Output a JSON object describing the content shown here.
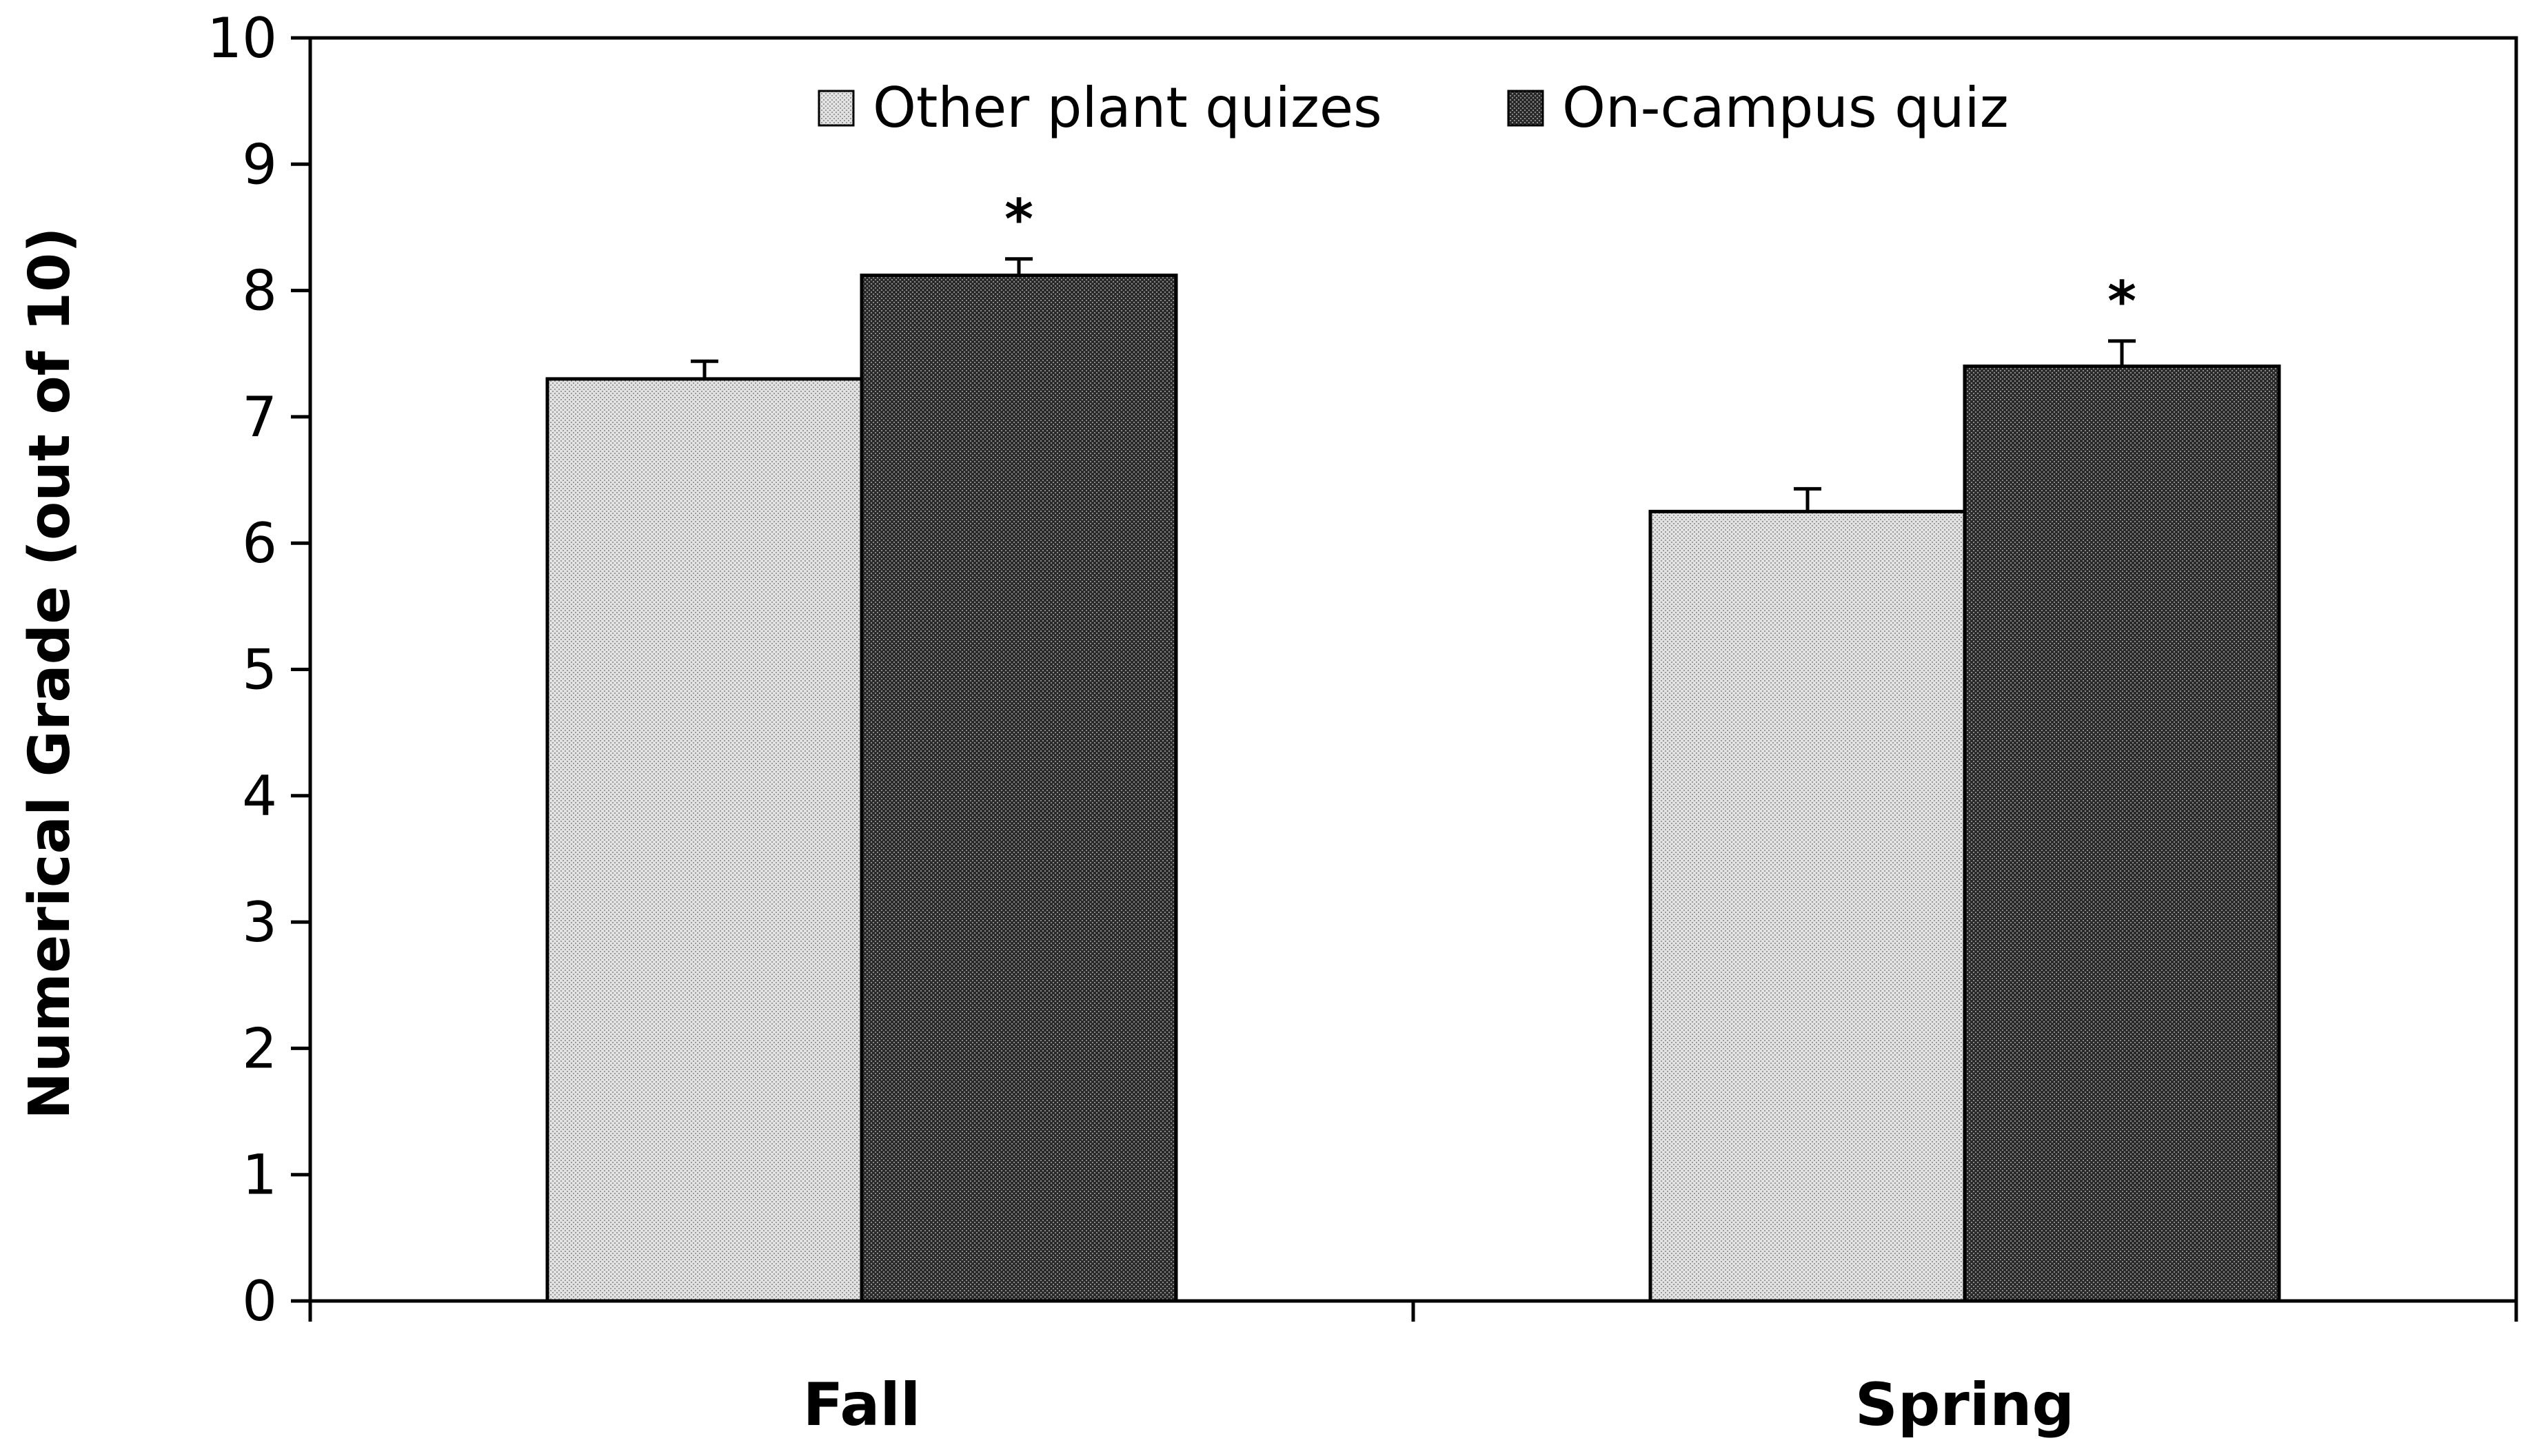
{
  "chart_data": {
    "type": "bar",
    "categories": [
      "Fall",
      "Spring"
    ],
    "series": [
      {
        "name": "Other plant quizes",
        "values": [
          7.3,
          6.25
        ],
        "errors": [
          0.14,
          0.18
        ],
        "color": "#d2d2d2"
      },
      {
        "name": "On-campus quiz",
        "values": [
          8.12,
          7.4
        ],
        "errors": [
          0.13,
          0.2
        ],
        "color": "#3a3a3a"
      }
    ],
    "annotations": [
      {
        "text": "*",
        "category": "Fall",
        "series": "On-campus quiz"
      },
      {
        "text": "*",
        "category": "Spring",
        "series": "On-campus quiz"
      }
    ],
    "title": "",
    "xlabel": "",
    "ylabel": "Numerical Grade (out of 10)",
    "ylim": [
      0,
      10
    ],
    "yticks": [
      0,
      1,
      2,
      3,
      4,
      5,
      6,
      7,
      8,
      9,
      10
    ],
    "grid": false,
    "legend": "top-center",
    "error_bars": true
  }
}
